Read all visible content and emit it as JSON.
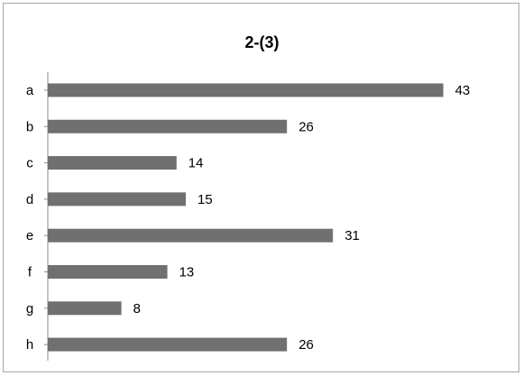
{
  "chart_data": {
    "type": "bar",
    "orientation": "horizontal",
    "title": "2-(3)",
    "categories": [
      "a",
      "b",
      "c",
      "d",
      "e",
      "f",
      "g",
      "h"
    ],
    "values": [
      43,
      26,
      14,
      15,
      31,
      13,
      8,
      26
    ],
    "xlim": [
      0,
      50
    ],
    "xlabel": "",
    "ylabel": "",
    "grid": false,
    "legend": "none",
    "data_labels": true,
    "bar_color": "#707070"
  }
}
